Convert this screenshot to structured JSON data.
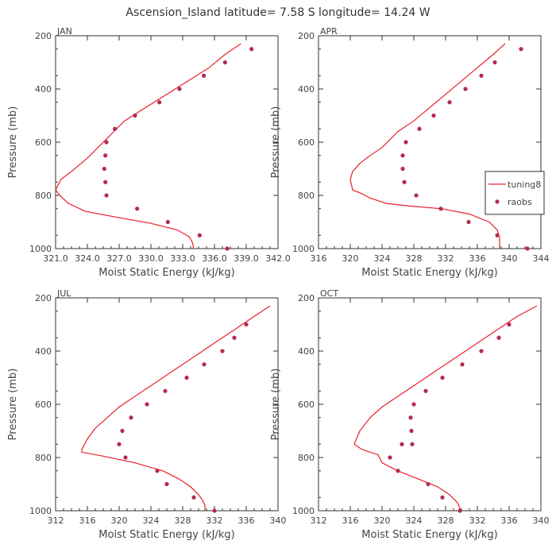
{
  "figure_title": "Ascension_Island   latitude=  7.58 S longitude= 14.24 W",
  "colors": {
    "model": "#e8202a",
    "raobs": "#b52a55",
    "axis": "#333333"
  },
  "legend": {
    "model_label": "tuning8",
    "raobs_label": "raobs",
    "placement": "right-middle of APR panel"
  },
  "chart_data": [
    {
      "type": "line",
      "title": "JAN",
      "xlabel": "Moist Static Energy (kJ/kg)",
      "ylabel": "Pressure (mb)",
      "xlim": [
        321.0,
        342.0
      ],
      "ylim": [
        1000,
        200
      ],
      "x_ticks": [
        321.0,
        324.0,
        327.0,
        330.0,
        333.0,
        336.0,
        339.0,
        342.0
      ],
      "x_tick_labels": [
        "321.0",
        "324.0",
        "327.0",
        "330.0",
        "333.0",
        "336.0",
        "339.0",
        "342.0"
      ],
      "y_ticks": [
        200,
        400,
        600,
        800,
        1000
      ],
      "series": [
        {
          "name": "tuning8",
          "kind": "line",
          "x": [
            338.5,
            337.0,
            335.5,
            333.5,
            331.5,
            329.5,
            327.5,
            326.0,
            325.0,
            324.0,
            322.5,
            321.5,
            321.0,
            321.4,
            322.2,
            323.8,
            326.5,
            330.0,
            332.5,
            333.6,
            333.9,
            334.0,
            334.0
          ],
          "y": [
            230,
            270,
            320,
            370,
            420,
            470,
            520,
            580,
            620,
            660,
            710,
            740,
            780,
            800,
            830,
            860,
            880,
            905,
            930,
            955,
            975,
            990,
            1000
          ]
        },
        {
          "name": "raobs",
          "kind": "scatter",
          "x": [
            339.5,
            337.0,
            335.0,
            332.7,
            330.8,
            328.5,
            326.6,
            325.8,
            325.7,
            325.6,
            325.7,
            325.8,
            328.7,
            331.6,
            334.6,
            337.2
          ],
          "y": [
            250,
            300,
            350,
            400,
            450,
            500,
            550,
            600,
            650,
            700,
            750,
            800,
            850,
            900,
            950,
            1000
          ]
        }
      ]
    },
    {
      "type": "line",
      "title": "APR",
      "xlabel": "Moist Static Energy (kJ/kg)",
      "ylabel": "Pressure (mb)",
      "xlim": [
        316,
        344
      ],
      "ylim": [
        1000,
        200
      ],
      "x_ticks": [
        316,
        320,
        324,
        328,
        332,
        336,
        340,
        344
      ],
      "x_tick_labels": [
        "316",
        "320",
        "324",
        "328",
        "332",
        "336",
        "340",
        "344"
      ],
      "y_ticks": [
        200,
        400,
        600,
        800,
        1000
      ],
      "series": [
        {
          "name": "tuning8",
          "kind": "line",
          "x": [
            339.5,
            338.0,
            336.0,
            334.0,
            332.0,
            330.0,
            328.0,
            326.0,
            325.0,
            324.0,
            322.5,
            321.2,
            320.3,
            320.0,
            320.3,
            321.2,
            322.5,
            324.5,
            327.5,
            331.5,
            335.0,
            337.5,
            338.5,
            338.8,
            338.8
          ],
          "y": [
            230,
            270,
            320,
            370,
            420,
            470,
            520,
            560,
            590,
            620,
            650,
            680,
            710,
            740,
            780,
            790,
            810,
            830,
            840,
            850,
            870,
            900,
            930,
            960,
            1000
          ]
        },
        {
          "name": "raobs",
          "kind": "scatter",
          "x": [
            341.5,
            338.2,
            336.5,
            334.5,
            332.5,
            330.5,
            328.7,
            327.0,
            326.6,
            326.6,
            326.8,
            328.3,
            331.4,
            334.9,
            338.5,
            342.3
          ],
          "y": [
            250,
            300,
            350,
            400,
            450,
            500,
            550,
            600,
            650,
            700,
            750,
            800,
            850,
            900,
            950,
            1000
          ]
        }
      ]
    },
    {
      "type": "line",
      "title": "JUL",
      "xlabel": "Moist Static Energy (kJ/kg)",
      "ylabel": "Pressure (mb)",
      "xlim": [
        312,
        340
      ],
      "ylim": [
        1000,
        200
      ],
      "x_ticks": [
        312,
        316,
        320,
        324,
        328,
        332,
        336,
        340
      ],
      "x_tick_labels": [
        "312",
        "316",
        "320",
        "324",
        "328",
        "332",
        "336",
        "340"
      ],
      "y_ticks": [
        200,
        400,
        600,
        800,
        1000
      ],
      "series": [
        {
          "name": "tuning8",
          "kind": "line",
          "x": [
            339.0,
            337.0,
            334.5,
            332.0,
            329.5,
            327.0,
            324.5,
            322.0,
            320.0,
            318.5,
            317.0,
            316.0,
            315.3,
            315.3,
            318.0,
            322.0,
            325.5,
            327.5,
            329.0,
            330.0,
            330.5,
            330.8,
            330.8
          ],
          "y": [
            230,
            270,
            320,
            370,
            420,
            470,
            520,
            570,
            610,
            650,
            690,
            730,
            770,
            780,
            795,
            820,
            850,
            880,
            910,
            940,
            960,
            980,
            1000
          ]
        },
        {
          "name": "raobs",
          "kind": "scatter",
          "x": [
            336.0,
            334.5,
            333.0,
            330.7,
            328.5,
            325.8,
            323.5,
            321.5,
            320.4,
            320.0,
            320.8,
            324.8,
            326.0,
            329.4,
            332.0
          ],
          "y": [
            300,
            350,
            400,
            450,
            500,
            550,
            600,
            650,
            700,
            750,
            800,
            850,
            900,
            950,
            1000
          ]
        }
      ]
    },
    {
      "type": "line",
      "title": "OCT",
      "xlabel": "Moist Static Energy (kJ/kg)",
      "ylabel": "Pressure (mb)",
      "xlim": [
        312,
        340
      ],
      "ylim": [
        1000,
        200
      ],
      "x_ticks": [
        312,
        316,
        320,
        324,
        328,
        332,
        336,
        340
      ],
      "x_tick_labels": [
        "312",
        "316",
        "320",
        "324",
        "328",
        "332",
        "336",
        "340"
      ],
      "y_ticks": [
        200,
        400,
        600,
        800,
        1000
      ],
      "series": [
        {
          "name": "tuning8",
          "kind": "line",
          "x": [
            339.5,
            337.0,
            334.5,
            332.0,
            329.5,
            327.0,
            324.5,
            322.0,
            320.0,
            318.5,
            317.2,
            316.5,
            317.5,
            319.5,
            320.0,
            322.0,
            324.5,
            327.0,
            328.5,
            329.5,
            329.8,
            329.8
          ],
          "y": [
            230,
            270,
            320,
            370,
            420,
            470,
            520,
            570,
            610,
            650,
            700,
            750,
            770,
            790,
            820,
            850,
            880,
            910,
            940,
            970,
            990,
            1000
          ]
        },
        {
          "name": "raobs",
          "kind": "scatter",
          "x": [
            336.0,
            334.7,
            332.5,
            330.1,
            327.6,
            325.5,
            324.0,
            323.6,
            323.7,
            323.8,
            322.5,
            321.0,
            322.0,
            325.8,
            327.6,
            329.8
          ],
          "y": [
            300,
            350,
            400,
            450,
            500,
            550,
            600,
            650,
            700,
            750,
            750,
            800,
            850,
            900,
            950,
            1000
          ]
        }
      ]
    }
  ]
}
